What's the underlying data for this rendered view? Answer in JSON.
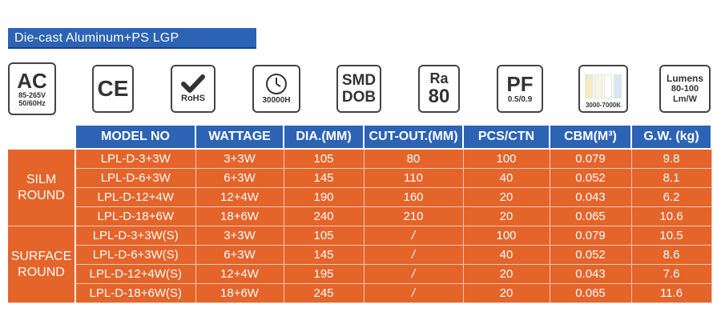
{
  "title": "Die-cast Aluminum+PS LGP",
  "icons": {
    "ac": {
      "big": "AC",
      "line1": "85-265V",
      "line2": "50/60Hz"
    },
    "ce": {
      "text": "CE"
    },
    "rohs": {
      "text": "RoHS"
    },
    "lifetime": {
      "text": "30000H"
    },
    "chip": {
      "line1": "SMD",
      "line2": "DOB"
    },
    "ra": {
      "line1": "Ra",
      "line2": "80"
    },
    "pf": {
      "line1": "PF",
      "line2": "0.5/0.9"
    },
    "cct": {
      "text": "3000-7000K",
      "colors": [
        "#f3ecc3",
        "#f8f6e4",
        "#ffffff",
        "#d5e8f2"
      ]
    },
    "lumens": {
      "line1": "Lumens",
      "line2": "80-100",
      "line3": "Lm/W"
    }
  },
  "table": {
    "headers": [
      "MODEL NO",
      "WATTAGE",
      "DIA.(MM)",
      "CUT-OUT.(MM)",
      "PCS/CTN",
      "CBM(M³)",
      "G.W. (kg)"
    ],
    "groups": [
      {
        "label_line1": "SILM",
        "label_line2": "ROUND",
        "rows": [
          [
            "LPL-D-3+3W",
            "3+3W",
            "105",
            "80",
            "100",
            "0.079",
            "9.8"
          ],
          [
            "LPL-D-6+3W",
            "6+3W",
            "145",
            "110",
            "40",
            "0.052",
            "8.1"
          ],
          [
            "LPL-D-12+4W",
            "12+4W",
            "190",
            "160",
            "20",
            "0.043",
            "6.2"
          ],
          [
            "LPL-D-18+6W",
            "18+6W",
            "240",
            "210",
            "20",
            "0.065",
            "10.6"
          ]
        ]
      },
      {
        "label_line1": "SURFACE",
        "label_line2": "ROUND",
        "rows": [
          [
            "LPL-D-3+3W(S)",
            "3+3W",
            "105",
            "/",
            "100",
            "0.079",
            "10.5"
          ],
          [
            "LPL-D-6+3W(S)",
            "6+3W",
            "145",
            "/",
            "40",
            "0.052",
            "8.6"
          ],
          [
            "LPL-D-12+4W(S)",
            "12+4W",
            "195",
            "/",
            "20",
            "0.043",
            "7.6"
          ],
          [
            "LPL-D-18+6W(S)",
            "18+6W",
            "245",
            "/",
            "20",
            "0.065",
            "11.6"
          ]
        ]
      }
    ]
  }
}
